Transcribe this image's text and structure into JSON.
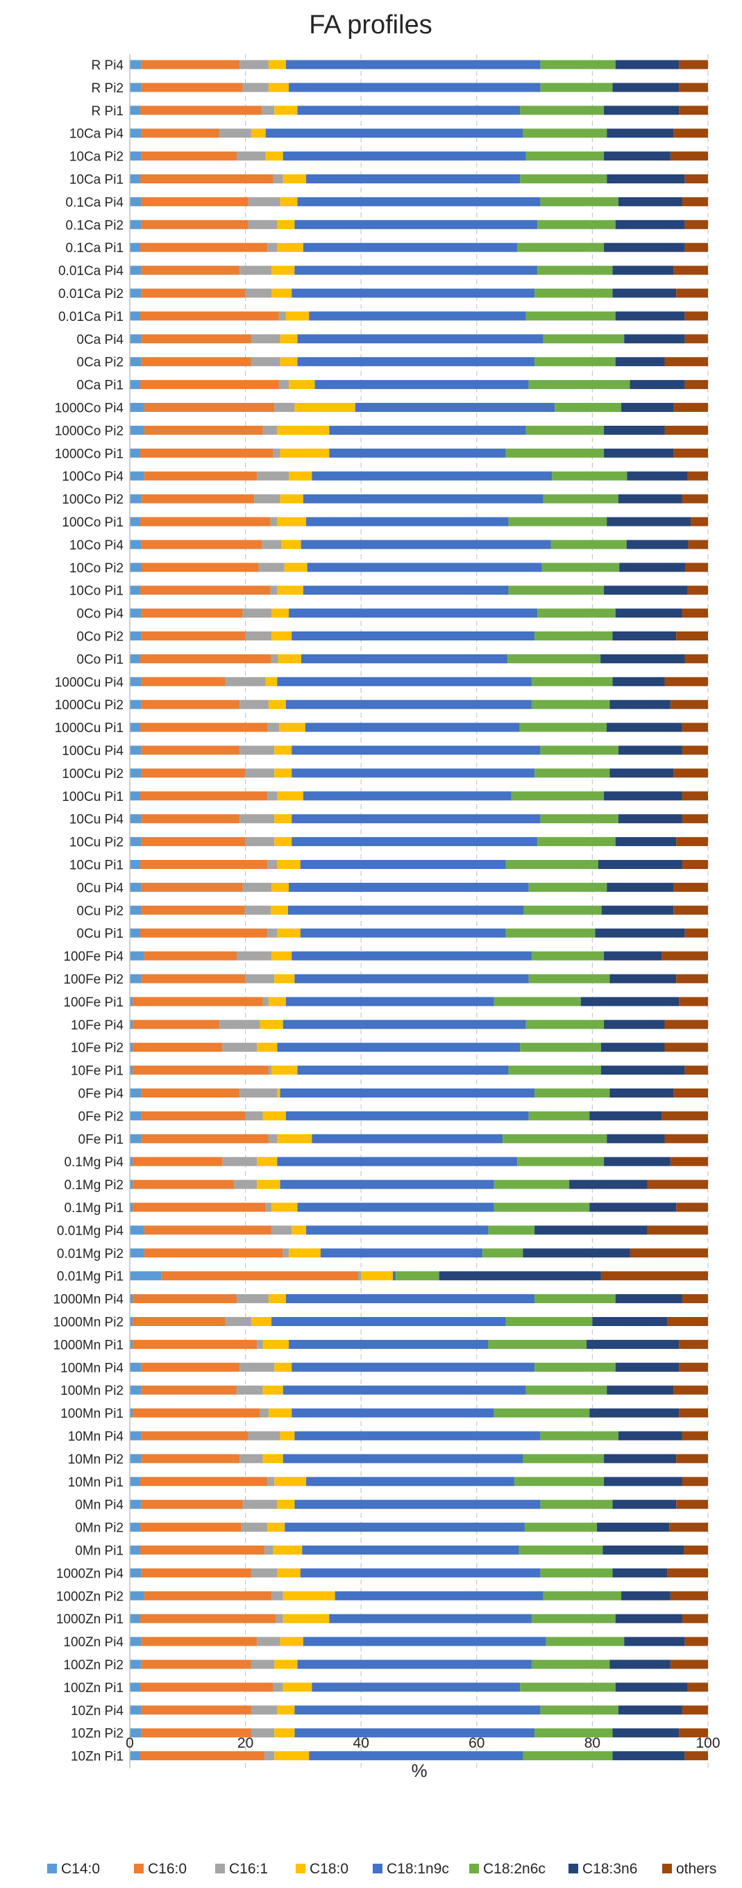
{
  "chart_data": {
    "type": "bar",
    "orientation": "horizontal",
    "stacked": true,
    "title": "FA profiles",
    "xlabel": "%",
    "ylabel": "",
    "xlim": [
      0,
      100
    ],
    "xticks": [
      0,
      20,
      40,
      60,
      80,
      100
    ],
    "grid": "vertical dashed",
    "legend": "bottom",
    "series_names": [
      "C14:0",
      "C16:0",
      "C16:1",
      "C18:0",
      "C18:1n9c",
      "C18:2n6c",
      "C18:3n6",
      "others"
    ],
    "colors": [
      "#5b9bd5",
      "#ed7d31",
      "#a5a5a5",
      "#ffc000",
      "#4472c4",
      "#70ad47",
      "#264478",
      "#9e480e"
    ],
    "categories": [
      "R Pi4",
      "R Pi2",
      "R Pi1",
      "10Ca Pi4",
      "10Ca Pi2",
      "10Ca Pi1",
      "0.1Ca Pi4",
      "0.1Ca Pi2",
      "0.1Ca Pi1",
      "0.01Ca Pi4",
      "0.01Ca Pi2",
      "0.01Ca Pi1",
      "0Ca Pi4",
      "0Ca Pi2",
      "0Ca Pi1",
      "1000Co Pi4",
      "1000Co Pi2",
      "1000Co Pi1",
      "100Co Pi4",
      "100Co Pi2",
      "100Co Pi1",
      "10Co Pi4",
      "10Co Pi2",
      "10Co Pi1",
      "0Co Pi4",
      "0Co Pi2",
      "0Co Pi1",
      "1000Cu Pi4",
      "1000Cu Pi2",
      "1000Cu Pi1",
      "100Cu Pi4",
      "100Cu Pi2",
      "100Cu Pi1",
      "10Cu Pi4",
      "10Cu Pi2",
      "10Cu Pi1",
      "0Cu Pi4",
      "0Cu Pi2",
      "0Cu Pi1",
      "100Fe Pi4",
      "100Fe Pi2",
      "100Fe Pi1",
      "10Fe Pi4",
      "10Fe Pi2",
      "10Fe Pi1",
      "0Fe Pi4",
      "0Fe Pi2",
      "0Fe Pi1",
      "0.1Mg Pi4",
      "0.1Mg Pi2",
      "0.1Mg Pi1",
      "0.01Mg Pi4",
      "0.01Mg Pi2",
      "0.01Mg Pi1",
      "1000Mn Pi4",
      "1000Mn Pi2",
      "1000Mn Pi1",
      "100Mn Pi4",
      "100Mn Pi2",
      "100Mn Pi1",
      "10Mn Pi4",
      "10Mn Pi2",
      "10Mn Pi1",
      "0Mn Pi4",
      "0Mn Pi2",
      "0Mn Pi1",
      "1000Zn Pi4",
      "1000Zn Pi2",
      "1000Zn Pi1",
      "100Zn Pi4",
      "100Zn Pi2",
      "100Zn Pi1",
      "10Zn Pi4",
      "10Zn Pi2",
      "10Zn Pi1"
    ],
    "values": [
      [
        2.0,
        17.0,
        5.0,
        3.0,
        44.0,
        13.0,
        11.0,
        5.0
      ],
      [
        2.0,
        17.5,
        4.5,
        3.5,
        43.5,
        12.5,
        11.5,
        5.0
      ],
      [
        1.8,
        21.0,
        2.2,
        4.0,
        38.5,
        14.5,
        13.0,
        5.0
      ],
      [
        2.0,
        13.5,
        5.5,
        2.5,
        44.5,
        14.5,
        11.5,
        6.0
      ],
      [
        2.0,
        16.5,
        5.0,
        3.0,
        42.0,
        13.5,
        11.5,
        6.5
      ],
      [
        1.8,
        23.0,
        1.7,
        4.0,
        37.0,
        15.0,
        13.5,
        4.0
      ],
      [
        2.0,
        18.5,
        5.5,
        3.0,
        42.0,
        13.5,
        11.0,
        4.5
      ],
      [
        2.0,
        18.5,
        5.0,
        3.0,
        42.0,
        13.5,
        12.0,
        4.0
      ],
      [
        1.8,
        22.0,
        1.7,
        4.5,
        37.0,
        15.0,
        14.0,
        4.0
      ],
      [
        2.0,
        17.0,
        5.5,
        4.0,
        42.0,
        13.0,
        10.5,
        6.0
      ],
      [
        2.0,
        18.0,
        4.5,
        3.5,
        42.0,
        13.5,
        11.0,
        5.5
      ],
      [
        1.8,
        24.0,
        1.2,
        4.0,
        37.5,
        15.5,
        12.0,
        4.0
      ],
      [
        2.0,
        19.0,
        5.0,
        3.0,
        42.5,
        14.0,
        10.5,
        4.0
      ],
      [
        2.0,
        19.0,
        5.0,
        3.0,
        41.0,
        14.0,
        8.5,
        7.5
      ],
      [
        1.8,
        24.0,
        1.7,
        4.5,
        37.0,
        17.5,
        9.5,
        4.0
      ],
      [
        2.5,
        22.5,
        3.5,
        10.5,
        34.5,
        11.5,
        9.0,
        6.0
      ],
      [
        2.5,
        20.5,
        2.5,
        9.0,
        34.0,
        13.5,
        10.5,
        7.5
      ],
      [
        1.8,
        23.0,
        1.2,
        8.5,
        30.5,
        17.0,
        12.0,
        6.0
      ],
      [
        2.5,
        19.5,
        5.5,
        4.0,
        41.5,
        13.0,
        10.5,
        3.5
      ],
      [
        2.0,
        19.5,
        4.5,
        4.0,
        41.5,
        13.0,
        11.0,
        4.5
      ],
      [
        1.8,
        22.5,
        1.2,
        5.0,
        35.0,
        17.0,
        14.5,
        3.0
      ],
      [
        2.0,
        21.5,
        3.5,
        3.5,
        44.5,
        13.5,
        11.0,
        3.5
      ],
      [
        2.0,
        20.5,
        4.5,
        4.0,
        41.0,
        13.5,
        11.5,
        4.0
      ],
      [
        1.8,
        22.5,
        1.2,
        4.5,
        35.5,
        16.5,
        14.5,
        3.5
      ],
      [
        2.0,
        17.5,
        5.0,
        3.0,
        43.0,
        13.5,
        11.5,
        4.5
      ],
      [
        2.0,
        18.0,
        4.5,
        3.5,
        42.0,
        13.5,
        11.0,
        5.5
      ],
      [
        1.8,
        22.5,
        1.2,
        4.0,
        35.5,
        16.0,
        14.5,
        4.0
      ],
      [
        2.0,
        14.5,
        7.0,
        2.0,
        44.0,
        14.0,
        9.0,
        7.5
      ],
      [
        2.0,
        17.0,
        5.0,
        3.0,
        42.5,
        13.5,
        10.5,
        6.5
      ],
      [
        1.8,
        22.0,
        2.0,
        4.5,
        37.0,
        15.0,
        13.0,
        4.5
      ],
      [
        2.0,
        17.0,
        6.0,
        3.0,
        43.0,
        13.5,
        11.0,
        4.5
      ],
      [
        2.0,
        18.0,
        5.0,
        3.0,
        42.0,
        13.0,
        11.0,
        6.0
      ],
      [
        1.8,
        22.0,
        1.7,
        4.5,
        36.0,
        16.0,
        13.5,
        4.5
      ],
      [
        2.0,
        17.0,
        6.0,
        3.0,
        43.0,
        13.5,
        11.0,
        4.5
      ],
      [
        2.0,
        18.0,
        5.0,
        3.0,
        42.5,
        13.5,
        10.5,
        5.5
      ],
      [
        1.8,
        22.0,
        1.7,
        4.0,
        35.5,
        16.0,
        14.5,
        4.5
      ],
      [
        2.0,
        17.5,
        5.0,
        3.0,
        41.5,
        13.5,
        11.5,
        6.0
      ],
      [
        2.0,
        18.0,
        4.5,
        3.0,
        41.0,
        13.5,
        12.5,
        6.0
      ],
      [
        1.8,
        22.0,
        1.7,
        4.0,
        35.5,
        15.5,
        15.5,
        4.0
      ],
      [
        2.5,
        16.0,
        6.0,
        3.5,
        41.5,
        12.5,
        10.0,
        8.0
      ],
      [
        2.0,
        18.0,
        5.0,
        3.5,
        40.5,
        14.0,
        11.5,
        5.5
      ],
      [
        0.5,
        22.5,
        1.0,
        3.0,
        36.0,
        15.0,
        17.0,
        5.0
      ],
      [
        0.5,
        15.0,
        7.0,
        4.0,
        42.0,
        13.5,
        10.5,
        7.5
      ],
      [
        0.5,
        15.5,
        6.0,
        3.5,
        42.0,
        14.0,
        11.0,
        7.5
      ],
      [
        0.5,
        23.5,
        0.5,
        4.5,
        36.5,
        16.0,
        14.5,
        4.0
      ],
      [
        2.0,
        17.0,
        6.5,
        0.5,
        44.0,
        13.0,
        11.0,
        6.0
      ],
      [
        2.0,
        18.0,
        3.0,
        4.0,
        42.0,
        10.5,
        12.5,
        8.0
      ],
      [
        2.0,
        22.0,
        1.5,
        6.0,
        33.0,
        18.0,
        10.0,
        7.5
      ],
      [
        0.5,
        15.5,
        6.0,
        3.5,
        41.5,
        15.0,
        11.5,
        6.5
      ],
      [
        0.5,
        17.5,
        4.0,
        4.0,
        37.0,
        13.0,
        13.5,
        10.5
      ],
      [
        0.5,
        23.0,
        1.0,
        4.5,
        34.0,
        16.5,
        15.0,
        5.5
      ],
      [
        2.5,
        22.0,
        3.5,
        2.5,
        31.5,
        8.0,
        19.5,
        10.5
      ],
      [
        2.5,
        24.0,
        1.0,
        5.5,
        28.0,
        7.0,
        18.5,
        13.5
      ],
      [
        5.5,
        34.0,
        0.5,
        5.5,
        0.5,
        7.5,
        28.0,
        18.5
      ],
      [
        0.5,
        18.0,
        5.5,
        3.0,
        43.0,
        14.0,
        11.5,
        4.5
      ],
      [
        0.5,
        16.0,
        4.5,
        3.5,
        40.5,
        15.0,
        13.0,
        7.0
      ],
      [
        0.5,
        21.5,
        1.0,
        4.5,
        34.5,
        17.0,
        16.0,
        5.0
      ],
      [
        2.0,
        17.0,
        6.0,
        3.0,
        42.0,
        14.0,
        11.0,
        5.0
      ],
      [
        2.0,
        16.5,
        4.5,
        3.5,
        42.0,
        14.0,
        11.5,
        6.0
      ],
      [
        0.5,
        22.0,
        1.5,
        4.0,
        35.0,
        16.5,
        15.5,
        5.0
      ],
      [
        2.0,
        18.5,
        5.5,
        2.5,
        42.5,
        13.5,
        11.0,
        4.5
      ],
      [
        2.0,
        17.0,
        4.0,
        3.5,
        41.5,
        14.0,
        12.5,
        5.5
      ],
      [
        1.8,
        22.0,
        1.2,
        5.5,
        36.0,
        15.5,
        13.5,
        4.5
      ],
      [
        2.0,
        17.5,
        6.0,
        3.0,
        42.5,
        12.5,
        11.0,
        5.5
      ],
      [
        1.8,
        17.5,
        4.5,
        3.0,
        41.5,
        12.5,
        12.5,
        6.7
      ],
      [
        1.8,
        21.5,
        1.5,
        5.0,
        37.5,
        14.5,
        14.0,
        4.2
      ],
      [
        2.0,
        19.0,
        4.5,
        4.0,
        41.5,
        12.5,
        9.5,
        7.0
      ],
      [
        2.5,
        22.0,
        2.0,
        9.0,
        36.0,
        13.5,
        8.5,
        6.5
      ],
      [
        1.8,
        23.5,
        1.2,
        8.0,
        35.0,
        14.5,
        11.5,
        4.5
      ],
      [
        2.0,
        20.0,
        4.0,
        4.0,
        42.0,
        13.5,
        10.5,
        4.0
      ],
      [
        2.0,
        19.0,
        4.0,
        4.0,
        40.5,
        13.5,
        10.5,
        6.5
      ],
      [
        1.8,
        23.0,
        1.7,
        5.0,
        36.0,
        16.5,
        12.5,
        3.5
      ],
      [
        2.0,
        19.0,
        4.5,
        3.0,
        42.5,
        13.5,
        11.0,
        4.5
      ],
      [
        2.0,
        19.0,
        4.0,
        3.5,
        41.5,
        13.5,
        11.5,
        5.0
      ],
      [
        1.8,
        21.5,
        1.7,
        6.0,
        37.0,
        15.5,
        12.5,
        4.0
      ]
    ]
  }
}
